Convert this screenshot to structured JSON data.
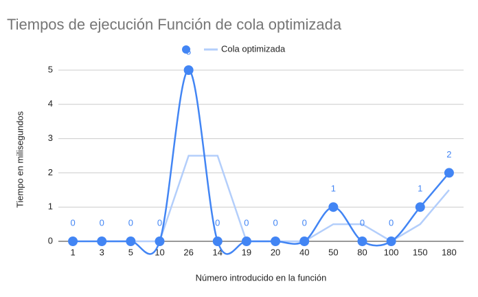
{
  "chart_data": {
    "type": "line",
    "title": "Tiempos de ejecución Función de cola optimizada",
    "x_label": "Número introducido en la función",
    "y_label": "Tiempo en milisegundos",
    "categories": [
      "1",
      "3",
      "5",
      "10",
      "26",
      "14",
      "19",
      "20",
      "40",
      "50",
      "80",
      "100",
      "150",
      "180"
    ],
    "series": [
      {
        "color": "#4285f4",
        "values": [
          0,
          0,
          0,
          0,
          5,
          0,
          0,
          0,
          0,
          1,
          0,
          0,
          1,
          2
        ]
      },
      {
        "name": "Cola optimizada",
        "color": "#b3cefb",
        "values": [
          null,
          0,
          0,
          0,
          2.5,
          2.5,
          0,
          0,
          0,
          0.5,
          0.5,
          0,
          0.5,
          1.5
        ]
      }
    ],
    "ylim": [
      0,
      5
    ],
    "yticks": [
      0,
      1,
      2,
      3,
      4,
      5
    ],
    "grid": true,
    "legend": "top"
  }
}
